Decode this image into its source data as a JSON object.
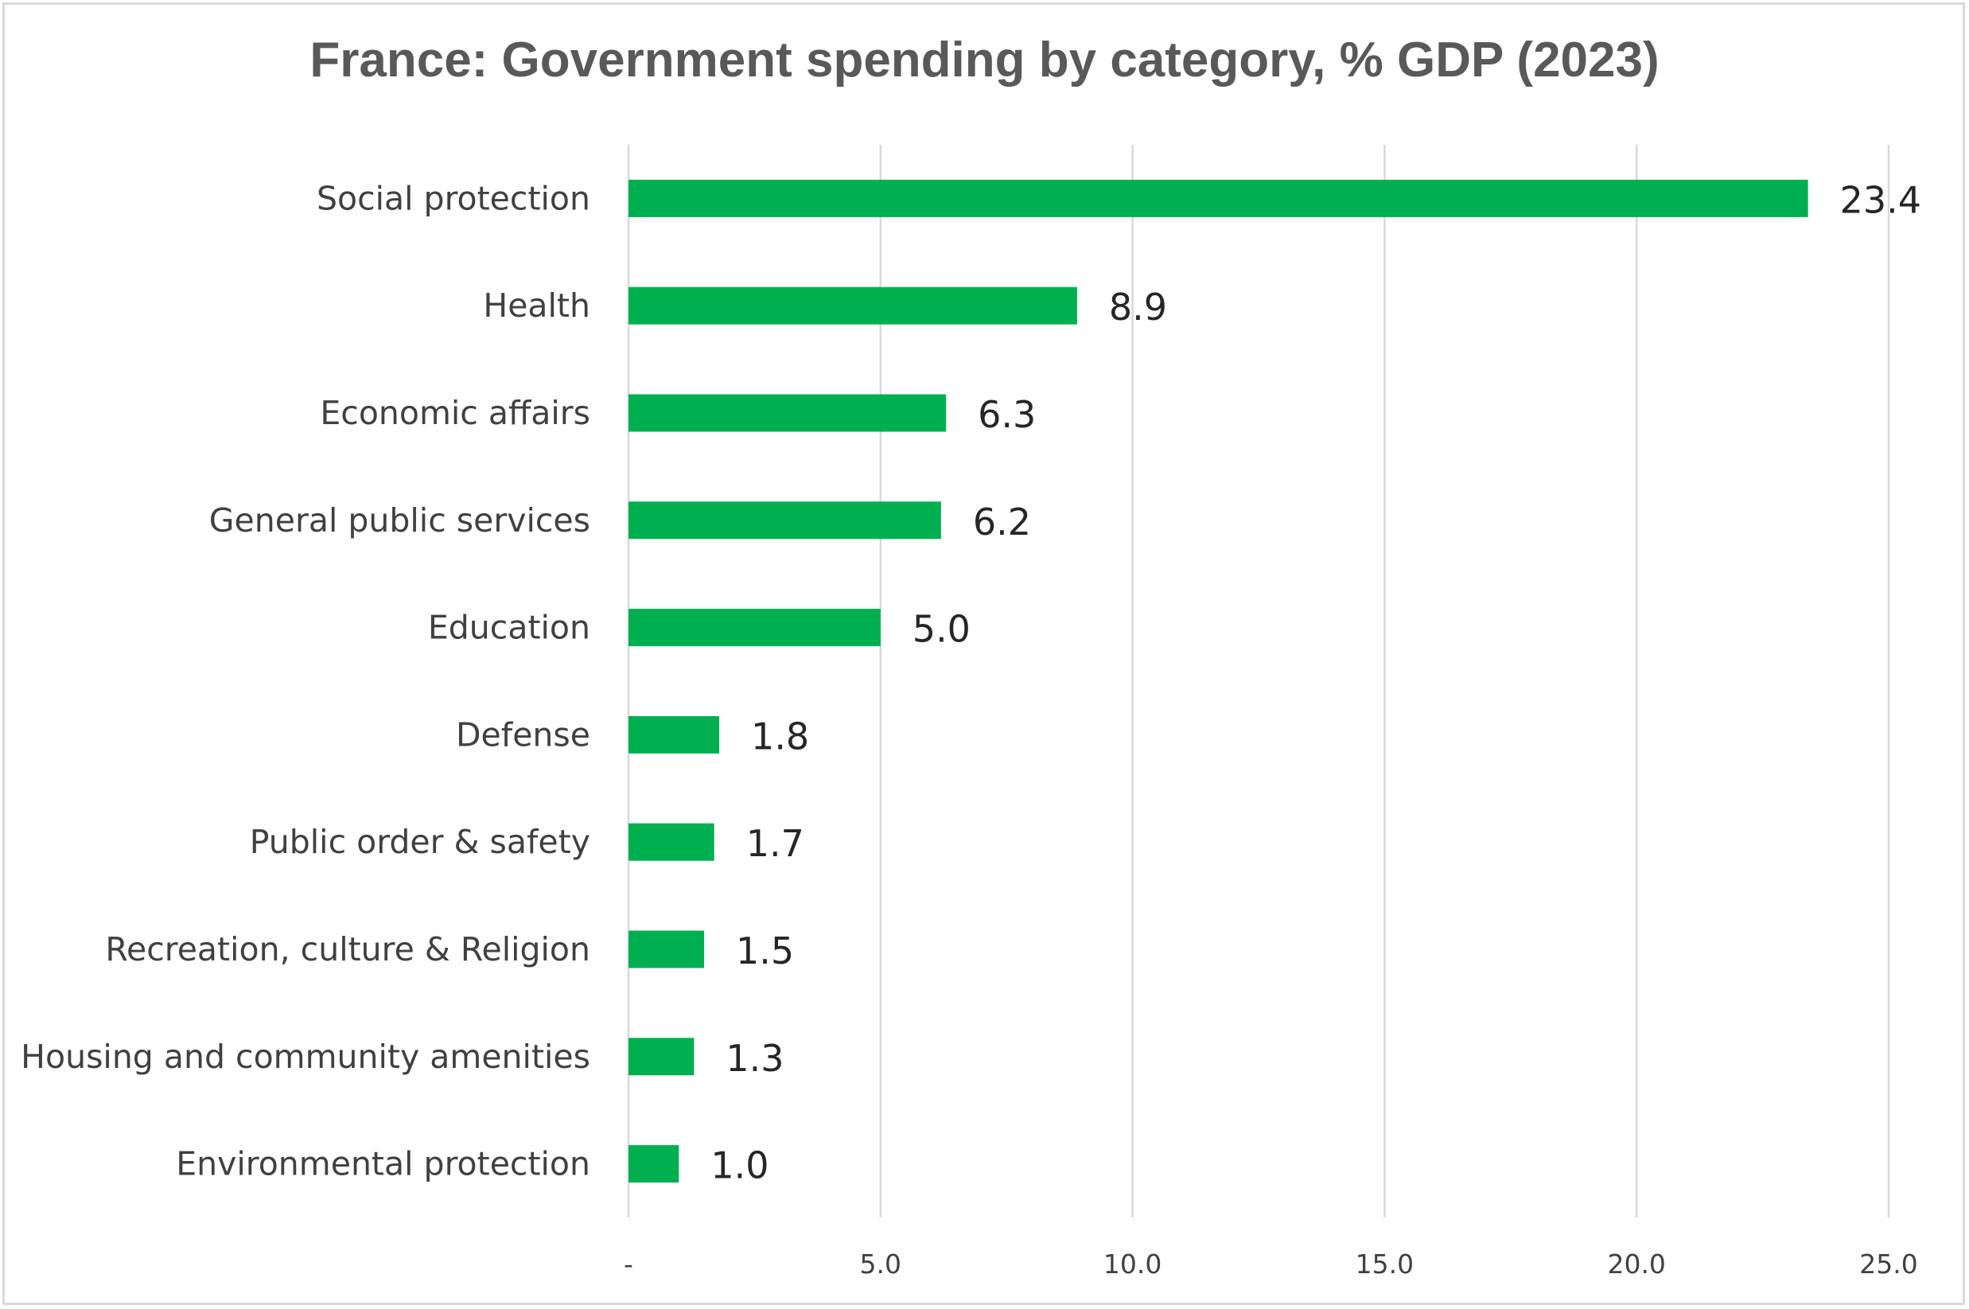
{
  "chart_data": {
    "type": "bar",
    "orientation": "horizontal",
    "title": "France: Government spending by category, % GDP (2023)",
    "xlabel": "",
    "ylabel": "",
    "categories": [
      "Social protection",
      "Health",
      "Economic affairs",
      "General public services",
      "Education",
      "Defense",
      "Public order & safety",
      "Recreation, culture & Religion",
      "Housing and community amenities",
      "Environmental protection"
    ],
    "values": [
      23.4,
      8.9,
      6.3,
      6.2,
      5.0,
      1.8,
      1.7,
      1.5,
      1.3,
      1.0
    ],
    "data_labels": [
      "23.4",
      "8.9",
      "6.3",
      "6.2",
      "5.0",
      "1.8",
      "1.7",
      "1.5",
      "1.3",
      "1.0"
    ],
    "xlim": [
      0,
      25
    ],
    "ticks": [
      0,
      5,
      10,
      15,
      20,
      25
    ],
    "tick_labels": [
      "-",
      "5.0",
      "10.0",
      "15.0",
      "20.0",
      "25.0"
    ],
    "grid": true,
    "legend": "none",
    "bar_color": "#00b050"
  }
}
